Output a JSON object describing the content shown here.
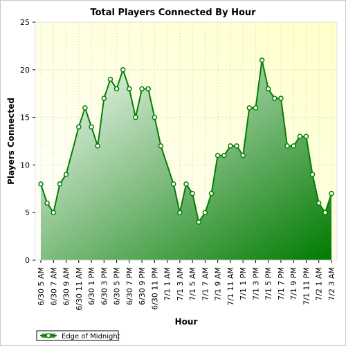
{
  "chart_data": {
    "type": "area",
    "title": "Total Players Connected By Hour",
    "xlabel": "Hour",
    "ylabel": "Players Connected",
    "ylim": [
      0,
      25
    ],
    "yticks": [
      0,
      5,
      10,
      15,
      20,
      25
    ],
    "xtick_labels": [
      "6/30 5 AM",
      "6/30 7 AM",
      "6/30 9 AM",
      "6/30 11 AM",
      "6/30 1 PM",
      "6/30 3 PM",
      "6/30 5 PM",
      "6/30 7 PM",
      "6/30 9 PM",
      "6/30 11 PM",
      "7/1 1 AM",
      "7/1 3 AM",
      "7/1 5 AM",
      "7/1 7 AM",
      "7/1 9 AM",
      "7/1 11 AM",
      "7/1 1 PM",
      "7/1 3 PM",
      "7/1 5 PM",
      "7/1 7 PM",
      "7/1 9 PM",
      "7/1 11 PM",
      "7/2 1 AM",
      "7/2 3 AM"
    ],
    "grid": true,
    "legend_position": "bottom-left",
    "series": [
      {
        "name": "Edge of Midnight",
        "color": "#008000",
        "points": [
          {
            "x": 0,
            "y": 8
          },
          {
            "x": 1,
            "y": 6
          },
          {
            "x": 2,
            "y": 5
          },
          {
            "x": 3,
            "y": 8
          },
          {
            "x": 4,
            "y": 9
          },
          {
            "x": 6,
            "y": 14
          },
          {
            "x": 7,
            "y": 16
          },
          {
            "x": 8,
            "y": 14
          },
          {
            "x": 9,
            "y": 12
          },
          {
            "x": 10,
            "y": 17
          },
          {
            "x": 11,
            "y": 19
          },
          {
            "x": 12,
            "y": 18
          },
          {
            "x": 13,
            "y": 20
          },
          {
            "x": 14,
            "y": 18
          },
          {
            "x": 15,
            "y": 15
          },
          {
            "x": 16,
            "y": 18
          },
          {
            "x": 17,
            "y": 18
          },
          {
            "x": 18,
            "y": 15
          },
          {
            "x": 19,
            "y": 12
          },
          {
            "x": 21,
            "y": 8
          },
          {
            "x": 22,
            "y": 5
          },
          {
            "x": 23,
            "y": 8
          },
          {
            "x": 24,
            "y": 7
          },
          {
            "x": 25,
            "y": 4
          },
          {
            "x": 26,
            "y": 5
          },
          {
            "x": 27,
            "y": 7
          },
          {
            "x": 28,
            "y": 11
          },
          {
            "x": 29,
            "y": 11
          },
          {
            "x": 30,
            "y": 12
          },
          {
            "x": 31,
            "y": 12
          },
          {
            "x": 32,
            "y": 11
          },
          {
            "x": 33,
            "y": 16
          },
          {
            "x": 34,
            "y": 16
          },
          {
            "x": 35,
            "y": 21
          },
          {
            "x": 36,
            "y": 18
          },
          {
            "x": 37,
            "y": 17
          },
          {
            "x": 38,
            "y": 17
          },
          {
            "x": 39,
            "y": 12
          },
          {
            "x": 40,
            "y": 12
          },
          {
            "x": 41,
            "y": 13
          },
          {
            "x": 42,
            "y": 13
          },
          {
            "x": 43,
            "y": 9
          },
          {
            "x": 44,
            "y": 6
          },
          {
            "x": 45,
            "y": 5
          },
          {
            "x": 46,
            "y": 7
          }
        ]
      }
    ]
  }
}
